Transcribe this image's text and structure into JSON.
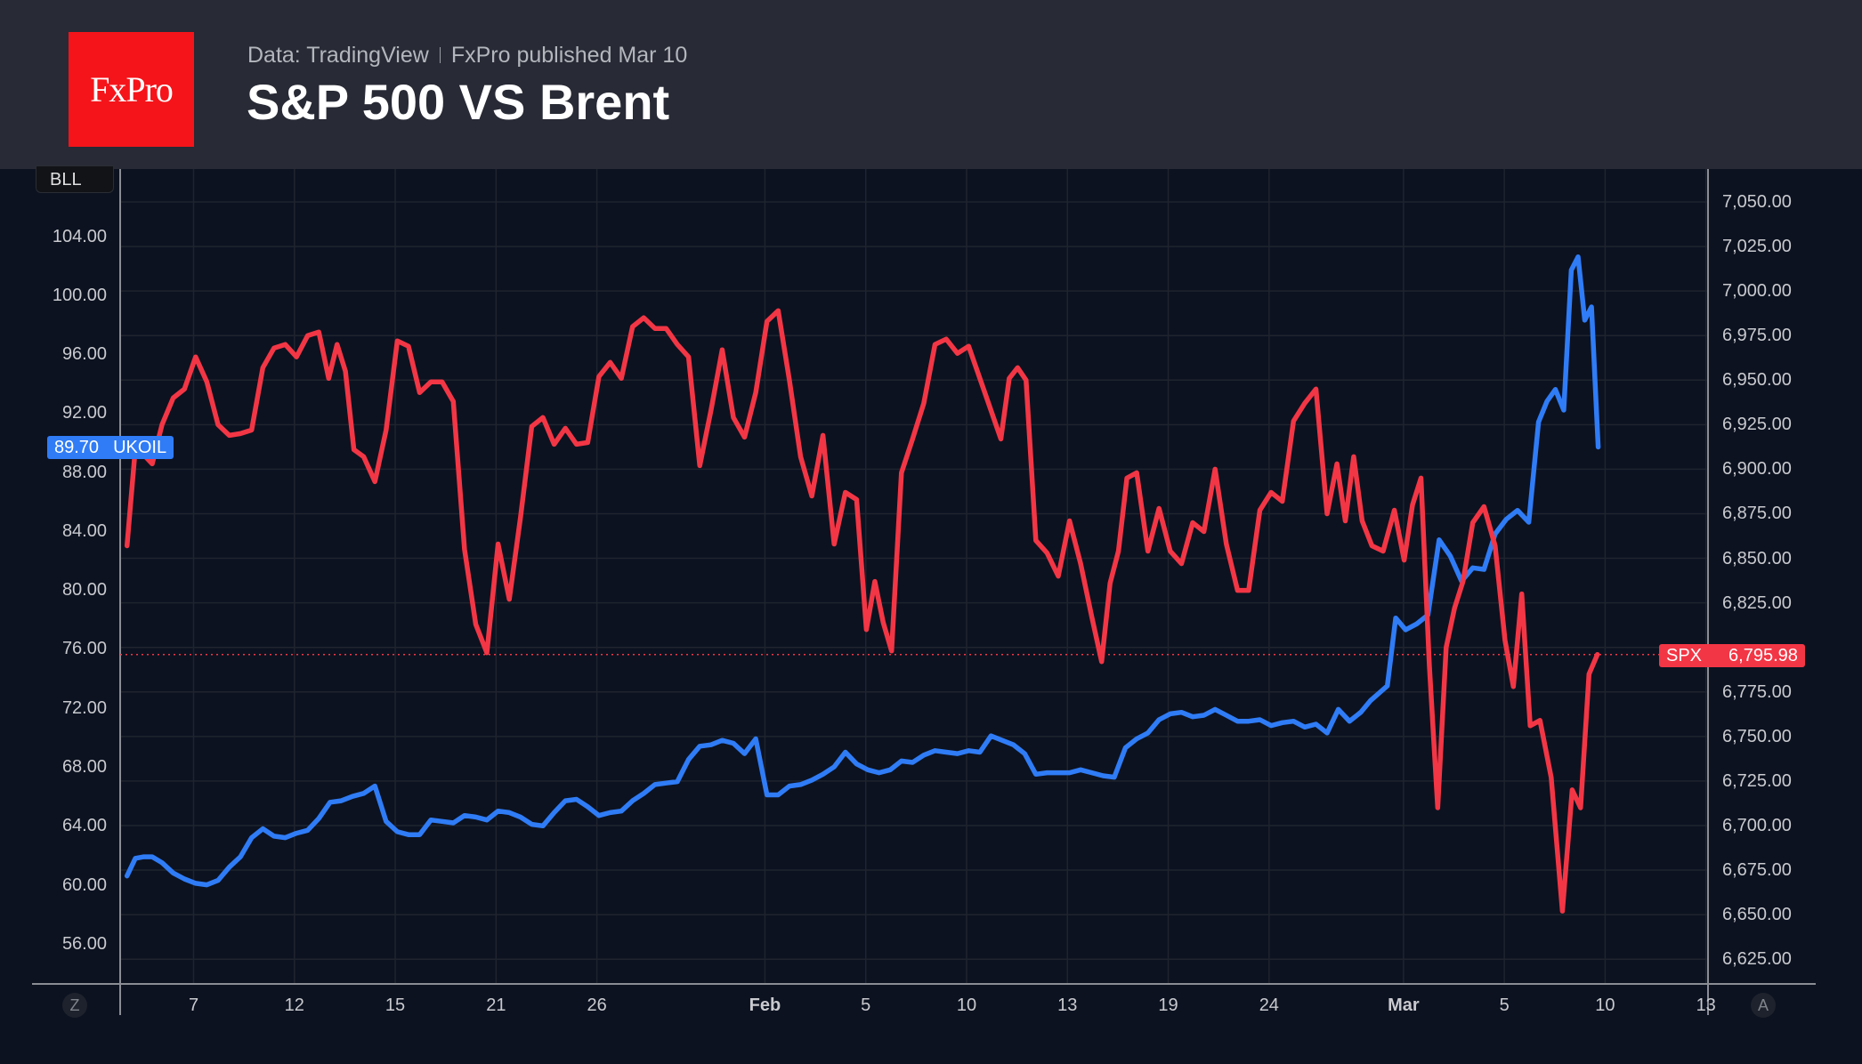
{
  "header": {
    "logo_text": "FxPro",
    "source": "Data: TradingView",
    "published": "FxPro published Mar 10",
    "title": "S&P 500 VS Brent"
  },
  "controls": {
    "currency_badge": "BLL",
    "left_scale_button": "Z",
    "right_scale_button": "A"
  },
  "chart_data": {
    "type": "line",
    "title": "S&P 500 VS Brent",
    "grid": true,
    "colors": {
      "UKOIL": "#2f7cf6",
      "SPX": "#f23645",
      "background": "#0c1220"
    },
    "left_axis": {
      "ticks": [
        "104.00",
        "100.00",
        "96.00",
        "92.00",
        "88.00",
        "84.00",
        "80.00",
        "76.00",
        "72.00",
        "68.00",
        "64.00",
        "60.00",
        "56.00"
      ],
      "range": [
        53,
        106
      ]
    },
    "right_axis": {
      "ticks": [
        "7,050.00",
        "7,025.00",
        "7,000.00",
        "6,975.00",
        "6,950.00",
        "6,925.00",
        "6,900.00",
        "6,875.00",
        "6,850.00",
        "6,825.00",
        "6,775.00",
        "6,750.00",
        "6,725.00",
        "6,700.00",
        "6,675.00",
        "6,650.00",
        "6,625.00"
      ],
      "range": [
        6600,
        7065
      ]
    },
    "x_ticks": [
      {
        "date": "Jan 7",
        "label": "7"
      },
      {
        "date": "Jan 12",
        "label": "12"
      },
      {
        "date": "Jan 15",
        "label": "15"
      },
      {
        "date": "Jan 21",
        "label": "21"
      },
      {
        "date": "Jan 26",
        "label": "26"
      },
      {
        "date": "Feb 2",
        "label": "Feb",
        "bold": true
      },
      {
        "date": "Feb 5",
        "label": "5"
      },
      {
        "date": "Feb 10",
        "label": "10"
      },
      {
        "date": "Feb 13",
        "label": "13"
      },
      {
        "date": "Feb 19",
        "label": "19"
      },
      {
        "date": "Feb 24",
        "label": "24"
      },
      {
        "date": "Mar 2",
        "label": "Mar",
        "bold": true
      },
      {
        "date": "Mar 5",
        "label": "5"
      },
      {
        "date": "Mar 10",
        "label": "10"
      },
      {
        "date": "Mar 13",
        "label": "13"
      }
    ],
    "trading_days": [
      "Jan 5",
      "Jan 6",
      "Jan 7",
      "Jan 8",
      "Jan 9",
      "Jan 12",
      "Jan 13",
      "Jan 14",
      "Jan 15",
      "Jan 16",
      "Jan 20",
      "Jan 21",
      "Jan 22",
      "Jan 23",
      "Jan 26",
      "Jan 27",
      "Jan 28",
      "Jan 29",
      "Jan 30",
      "Feb 2",
      "Feb 3",
      "Feb 4",
      "Feb 5",
      "Feb 6",
      "Feb 9",
      "Feb 10",
      "Feb 11",
      "Feb 12",
      "Feb 13",
      "Feb 17",
      "Feb 18",
      "Feb 19",
      "Feb 20",
      "Feb 23",
      "Feb 24",
      "Feb 25",
      "Feb 26",
      "Feb 27",
      "Mar 2",
      "Mar 3",
      "Mar 4",
      "Mar 5",
      "Mar 6",
      "Mar 9",
      "Mar 10",
      "Mar 11",
      "Mar 12",
      "Mar 13"
    ],
    "series": [
      {
        "name": "UKOIL",
        "axis": "left",
        "last_value": "89.70",
        "days": [
          {
            "date": "Jan 5",
            "values": [
              60.6,
              61.8,
              61.9,
              61.9
            ]
          },
          {
            "date": "Jan 6",
            "values": [
              61.5,
              60.8,
              60.4
            ]
          },
          {
            "date": "Jan 7",
            "values": [
              60.1,
              60.0,
              60.3
            ]
          },
          {
            "date": "Jan 8",
            "values": [
              61.2,
              61.9,
              63.2
            ]
          },
          {
            "date": "Jan 9",
            "values": [
              63.8,
              63.3,
              63.2
            ]
          },
          {
            "date": "Jan 12",
            "values": [
              63.5,
              63.7,
              64.5
            ]
          },
          {
            "date": "Jan 13",
            "values": [
              65.6,
              65.7,
              66.0
            ]
          },
          {
            "date": "Jan 14",
            "values": [
              66.2,
              66.7,
              64.3
            ]
          },
          {
            "date": "Jan 15",
            "values": [
              63.6,
              63.4,
              63.4
            ]
          },
          {
            "date": "Jan 16",
            "values": [
              64.4,
              64.3,
              64.2
            ]
          },
          {
            "date": "Jan 20",
            "values": [
              64.7,
              64.6,
              64.4
            ]
          },
          {
            "date": "Jan 21",
            "values": [
              65.0,
              64.9,
              64.6
            ]
          },
          {
            "date": "Jan 22",
            "values": [
              64.1,
              64.0,
              64.9
            ]
          },
          {
            "date": "Jan 23",
            "values": [
              65.7,
              65.8,
              65.3
            ]
          },
          {
            "date": "Jan 26",
            "values": [
              64.7,
              64.9,
              65.0
            ]
          },
          {
            "date": "Jan 27",
            "values": [
              65.7,
              66.2,
              66.8
            ]
          },
          {
            "date": "Jan 28",
            "values": [
              66.9,
              67.0,
              68.5
            ]
          },
          {
            "date": "Jan 29",
            "values": [
              69.4,
              69.5,
              69.8
            ]
          },
          {
            "date": "Jan 30",
            "values": [
              69.6,
              68.9,
              69.9
            ]
          },
          {
            "date": "Feb 2",
            "values": [
              66.1,
              66.1,
              66.7
            ]
          },
          {
            "date": "Feb 3",
            "values": [
              66.8,
              67.1,
              67.5
            ]
          },
          {
            "date": "Feb 4",
            "values": [
              68.0,
              69.0,
              68.2
            ]
          },
          {
            "date": "Feb 5",
            "values": [
              67.8,
              67.6,
              67.8
            ]
          },
          {
            "date": "Feb 6",
            "values": [
              68.4,
              68.3,
              68.8
            ]
          },
          {
            "date": "Feb 9",
            "values": [
              69.1,
              69.0,
              68.9
            ]
          },
          {
            "date": "Feb 10",
            "values": [
              69.1,
              69.0,
              70.1
            ]
          },
          {
            "date": "Feb 11",
            "values": [
              69.8,
              69.5,
              68.9
            ]
          },
          {
            "date": "Feb 12",
            "values": [
              67.5,
              67.6,
              67.6
            ]
          },
          {
            "date": "Feb 13",
            "values": [
              67.6,
              67.8,
              67.6
            ]
          },
          {
            "date": "Feb 17",
            "values": [
              67.4,
              67.3,
              69.3
            ]
          },
          {
            "date": "Feb 18",
            "values": [
              69.9,
              70.3,
              71.2
            ]
          },
          {
            "date": "Feb 19",
            "values": [
              71.6,
              71.7,
              71.4
            ]
          },
          {
            "date": "Feb 20",
            "values": [
              71.5,
              71.9,
              71.5
            ]
          },
          {
            "date": "Feb 23",
            "values": [
              71.1,
              71.1,
              71.2
            ]
          },
          {
            "date": "Feb 24",
            "values": [
              70.8,
              71.0,
              71.1
            ]
          },
          {
            "date": "Feb 25",
            "values": [
              70.7,
              70.9,
              70.3
            ]
          },
          {
            "date": "Feb 26",
            "values": [
              71.9,
              71.1,
              71.7
            ]
          },
          {
            "date": "Feb 27",
            "values": [
              72.5,
              73.0,
              73.5,
              78.1
            ]
          },
          {
            "date": "Mar 2",
            "values": [
              77.3,
              77.7,
              78.3
            ]
          },
          {
            "date": "Mar 3",
            "values": [
              83.4,
              82.3,
              80.6
            ]
          },
          {
            "date": "Mar 4",
            "values": [
              81.5,
              81.4,
              83.8
            ]
          },
          {
            "date": "Mar 5",
            "values": [
              84.8,
              85.4,
              84.6
            ]
          },
          {
            "date": "Mar 6",
            "values": [
              91.4,
              92.8,
              93.6,
              92.2
            ]
          },
          {
            "date": "Mar 9",
            "values": [
              101.7,
              102.6,
              98.3,
              99.2,
              89.7
            ]
          }
        ]
      },
      {
        "name": "SPX",
        "axis": "right",
        "last_value": "6,795.98",
        "days": [
          {
            "date": "Jan 5",
            "values": [
              6857,
              6912,
              6908,
              6903
            ]
          },
          {
            "date": "Jan 6",
            "values": [
              6925,
              6940,
              6945
            ]
          },
          {
            "date": "Jan 7",
            "values": [
              6963,
              6949,
              6925
            ]
          },
          {
            "date": "Jan 8",
            "values": [
              6919,
              6920,
              6922
            ]
          },
          {
            "date": "Jan 9",
            "values": [
              6957,
              6968,
              6970
            ]
          },
          {
            "date": "Jan 12",
            "values": [
              6963,
              6975,
              6977
            ]
          },
          {
            "date": "Jan 13",
            "values": [
              6951,
              6970,
              6955,
              6911
            ]
          },
          {
            "date": "Jan 14",
            "values": [
              6907,
              6893,
              6922
            ]
          },
          {
            "date": "Jan 15",
            "values": [
              6972,
              6969,
              6943
            ]
          },
          {
            "date": "Jan 16",
            "values": [
              6949,
              6949,
              6938
            ]
          },
          {
            "date": "Jan 20",
            "values": [
              6855,
              6813,
              6797
            ]
          },
          {
            "date": "Jan 21",
            "values": [
              6858,
              6827,
              6873
            ]
          },
          {
            "date": "Jan 22",
            "values": [
              6924,
              6929,
              6914
            ]
          },
          {
            "date": "Jan 23",
            "values": [
              6923,
              6914,
              6915
            ]
          },
          {
            "date": "Jan 26",
            "values": [
              6952,
              6960,
              6951
            ]
          },
          {
            "date": "Jan 27",
            "values": [
              6980,
              6985,
              6979
            ]
          },
          {
            "date": "Jan 28",
            "values": [
              6979,
              6970,
              6963
            ]
          },
          {
            "date": "Jan 29",
            "values": [
              6902,
              6933,
              6967
            ]
          },
          {
            "date": "Jan 30",
            "values": [
              6929,
              6918,
              6943
            ]
          },
          {
            "date": "Feb 2",
            "values": [
              6983,
              6989,
              6950
            ]
          },
          {
            "date": "Feb 3",
            "values": [
              6907,
              6885,
              6919
            ]
          },
          {
            "date": "Feb 4",
            "values": [
              6858,
              6887,
              6883
            ]
          },
          {
            "date": "Feb 5",
            "values": [
              6810,
              6837,
              6814,
              6798
            ]
          },
          {
            "date": "Feb 6",
            "values": [
              6898,
              6917,
              6937
            ]
          },
          {
            "date": "Feb 9",
            "values": [
              6970,
              6973,
              6965
            ]
          },
          {
            "date": "Feb 10",
            "values": [
              6969,
              6951,
              6933
            ]
          },
          {
            "date": "Feb 11",
            "values": [
              6917,
              6951,
              6957,
              6950
            ]
          },
          {
            "date": "Feb 12",
            "values": [
              6860,
              6853,
              6840
            ]
          },
          {
            "date": "Feb 13",
            "values": [
              6871,
              6847,
              6817
            ]
          },
          {
            "date": "Feb 17",
            "values": [
              6792,
              6836,
              6854,
              6895
            ]
          },
          {
            "date": "Feb 18",
            "values": [
              6898,
              6854,
              6878
            ]
          },
          {
            "date": "Feb 19",
            "values": [
              6854,
              6847,
              6870
            ]
          },
          {
            "date": "Feb 20",
            "values": [
              6865,
              6900,
              6858
            ]
          },
          {
            "date": "Feb 23",
            "values": [
              6832,
              6832,
              6877
            ]
          },
          {
            "date": "Feb 24",
            "values": [
              6887,
              6882,
              6927
            ]
          },
          {
            "date": "Feb 25",
            "values": [
              6937,
              6945,
              6875
            ]
          },
          {
            "date": "Feb 26",
            "values": [
              6903,
              6871,
              6907,
              6871
            ]
          },
          {
            "date": "Feb 27",
            "values": [
              6857,
              6854,
              6877
            ]
          },
          {
            "date": "Mar 2",
            "values": [
              6849,
              6880,
              6895,
              6790
            ]
          },
          {
            "date": "Mar 3",
            "values": [
              6710,
              6800,
              6822,
              6837
            ]
          },
          {
            "date": "Mar 4",
            "values": [
              6870,
              6879,
              6857
            ]
          },
          {
            "date": "Mar 5",
            "values": [
              6804,
              6778,
              6830,
              6756
            ]
          },
          {
            "date": "Mar 6",
            "values": [
              6759,
              6727,
              6652
            ]
          },
          {
            "date": "Mar 9",
            "values": [
              6720,
              6710,
              6785,
              6796
            ]
          }
        ]
      }
    ],
    "price_line": {
      "series": "SPX",
      "value": 6795.98
    }
  }
}
